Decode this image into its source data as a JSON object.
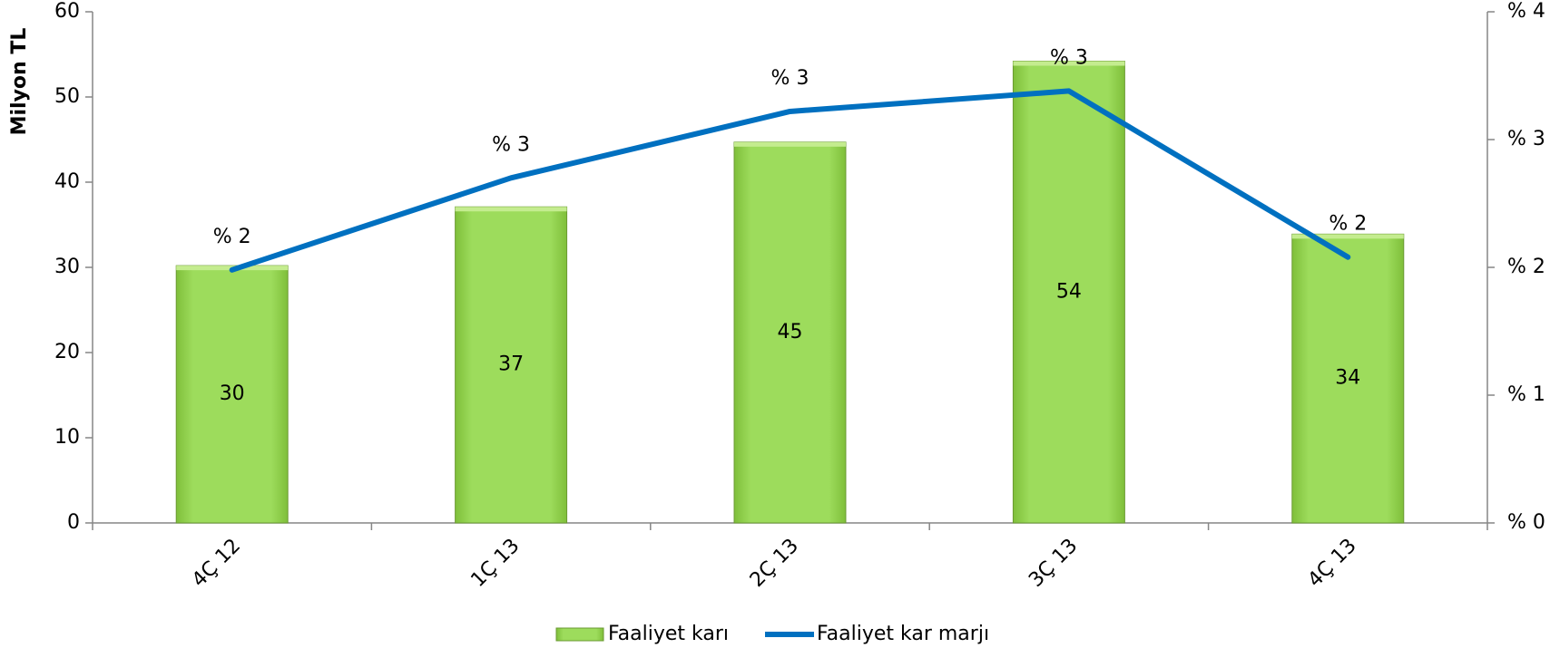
{
  "chart_data": {
    "type": "bar",
    "y_label": "Milyon TL",
    "categories": [
      "4Ç 12",
      "1Ç 13",
      "2Ç 13",
      "3Ç 13",
      "4Ç 13"
    ],
    "series": [
      {
        "name": "Faaliyet karı",
        "type": "bar",
        "color": "#92d050",
        "values": [
          30.2,
          37.1,
          44.7,
          54.2,
          33.9
        ],
        "value_labels": [
          "30",
          "37",
          "45",
          "54",
          "34"
        ]
      },
      {
        "name": "Faaliyet kar marjı",
        "type": "line",
        "axis": "y2",
        "color": "#0070c0",
        "values": [
          1.98,
          2.7,
          3.22,
          3.38,
          2.08
        ],
        "value_labels": [
          "% 2",
          "% 3",
          "% 3",
          "% 3",
          "% 2"
        ]
      }
    ],
    "ylim": [
      0,
      60
    ],
    "yticks": [
      0,
      10,
      20,
      30,
      40,
      50,
      60
    ],
    "y2lim": [
      0,
      4
    ],
    "y2ticks": [
      {
        "value": 0,
        "label": "% 0"
      },
      {
        "value": 1,
        "label": "% 1"
      },
      {
        "value": 2,
        "label": "% 2"
      },
      {
        "value": 3,
        "label": "% 3"
      },
      {
        "value": 4,
        "label": "% 4"
      }
    ],
    "legend": "bottom"
  }
}
